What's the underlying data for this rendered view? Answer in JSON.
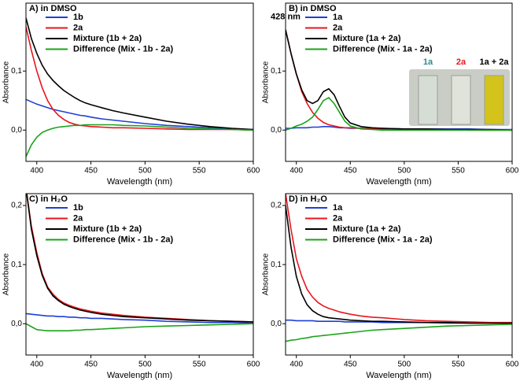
{
  "chart_data": [
    {
      "type": "line",
      "title": "A) in DMSO",
      "xlabel": "Wavelength (nm)",
      "ylabel": "Absorbance",
      "x": [
        390,
        395,
        400,
        405,
        410,
        415,
        420,
        425,
        430,
        435,
        440,
        445,
        450,
        460,
        470,
        480,
        500,
        520,
        540,
        560,
        580,
        600
      ],
      "xlim": [
        390,
        600
      ],
      "xticks": [
        400,
        450,
        500,
        550,
        600
      ],
      "ylim": [
        -0.053,
        0.215
      ],
      "yticks": [
        {
          "value": 0,
          "label": "0,0"
        },
        {
          "value": 0.1,
          "label": "0,1"
        }
      ],
      "series": [
        {
          "name": "1b",
          "color": "#1f3fd6",
          "values": [
            0.052,
            0.048,
            0.044,
            0.041,
            0.038,
            0.035,
            0.033,
            0.031,
            0.029,
            0.027,
            0.025,
            0.024,
            0.022,
            0.019,
            0.017,
            0.015,
            0.011,
            0.008,
            0.006,
            0.004,
            0.002,
            0.001
          ]
        },
        {
          "name": "2a",
          "color": "#e8161e",
          "values": [
            0.175,
            0.135,
            0.1,
            0.072,
            0.05,
            0.035,
            0.025,
            0.018,
            0.013,
            0.01,
            0.008,
            0.007,
            0.006,
            0.005,
            0.004,
            0.004,
            0.003,
            0.002,
            0.001,
            0.001,
            0.001,
            0
          ]
        },
        {
          "name": "Mixture (1b + 2a)",
          "color": "#000000",
          "values": [
            0.19,
            0.155,
            0.13,
            0.11,
            0.095,
            0.084,
            0.075,
            0.067,
            0.061,
            0.055,
            0.05,
            0.046,
            0.043,
            0.038,
            0.033,
            0.029,
            0.022,
            0.015,
            0.01,
            0.006,
            0.003,
            0.001
          ]
        },
        {
          "name": "Difference (Mix - 1b - 2a)",
          "color": "#1aa31a",
          "values": [
            -0.045,
            -0.025,
            -0.012,
            -0.004,
            0,
            0.003,
            0.005,
            0.006,
            0.007,
            0.008,
            0.008,
            0.009,
            0.009,
            0.009,
            0.009,
            0.008,
            0.007,
            0.005,
            0.003,
            0.002,
            0.001,
            0
          ]
        }
      ]
    },
    {
      "type": "line",
      "title": "B) in DMSO",
      "xlabel": "Wavelength (nm)",
      "ylabel": "Absorbance",
      "x": [
        390,
        395,
        400,
        405,
        410,
        415,
        420,
        425,
        430,
        435,
        440,
        445,
        450,
        460,
        470,
        480,
        500,
        520,
        540,
        560,
        580,
        600
      ],
      "xlim": [
        390,
        600
      ],
      "xticks": [
        400,
        450,
        500,
        550,
        600
      ],
      "ylim": [
        -0.053,
        0.215
      ],
      "yticks": [
        {
          "value": 0,
          "label": "0,0"
        },
        {
          "value": 0.1,
          "label": "0,1"
        }
      ],
      "annotation": "428 nm",
      "inset_labels": [
        "1a",
        "2a",
        "1a + 2a"
      ],
      "series": [
        {
          "name": "1a",
          "color": "#1f3fd6",
          "values": [
            0.003,
            0.003,
            0.004,
            0.004,
            0.004,
            0.005,
            0.005,
            0.006,
            0.006,
            0.005,
            0.004,
            0.004,
            0.003,
            0.003,
            0.003,
            0.003,
            0.002,
            0.002,
            0.002,
            0.002,
            0.001,
            0.001
          ]
        },
        {
          "name": "2a",
          "color": "#e8161e",
          "values": [
            0.17,
            0.13,
            0.095,
            0.065,
            0.045,
            0.03,
            0.02,
            0.013,
            0.009,
            0.007,
            0.005,
            0.004,
            0.004,
            0.003,
            0.002,
            0.002,
            0.001,
            0.001,
            0.001,
            0,
            0,
            0
          ]
        },
        {
          "name": "Mixture (1a + 2a)",
          "color": "#000000",
          "values": [
            0.17,
            0.13,
            0.095,
            0.068,
            0.05,
            0.045,
            0.05,
            0.065,
            0.07,
            0.06,
            0.04,
            0.022,
            0.012,
            0.006,
            0.004,
            0.003,
            0.002,
            0.002,
            0.001,
            0.001,
            0.001,
            0
          ]
        },
        {
          "name": "Difference (Mix - 1a - 2a)",
          "color": "#1aa31a",
          "values": [
            0,
            0.003,
            0.007,
            0.01,
            0.015,
            0.022,
            0.035,
            0.05,
            0.055,
            0.045,
            0.03,
            0.015,
            0.007,
            0.002,
            0.001,
            0,
            0,
            0,
            0,
            0,
            0,
            0
          ]
        }
      ]
    },
    {
      "type": "line",
      "title": "C) in H₂O",
      "xlabel": "Wavelength (nm)",
      "ylabel": "Absorbance",
      "x": [
        390,
        395,
        400,
        405,
        410,
        415,
        420,
        425,
        430,
        435,
        440,
        445,
        450,
        460,
        470,
        480,
        500,
        520,
        540,
        560,
        580,
        600
      ],
      "xlim": [
        390,
        600
      ],
      "xticks": [
        400,
        450,
        500,
        550,
        600
      ],
      "ylim": [
        -0.053,
        0.22
      ],
      "yticks": [
        {
          "value": 0,
          "label": "0,0"
        },
        {
          "value": 0.1,
          "label": "0,1"
        },
        {
          "value": 0.2,
          "label": "0,2"
        }
      ],
      "series": [
        {
          "name": "1b",
          "color": "#1f3fd6",
          "values": [
            0.017,
            0.016,
            0.015,
            0.014,
            0.013,
            0.013,
            0.012,
            0.012,
            0.011,
            0.011,
            0.01,
            0.01,
            0.009,
            0.009,
            0.008,
            0.007,
            0.006,
            0.004,
            0.003,
            0.002,
            0.002,
            0.001
          ]
        },
        {
          "name": "2a",
          "color": "#e8161e",
          "values": [
            0.23,
            0.165,
            0.12,
            0.085,
            0.062,
            0.05,
            0.041,
            0.035,
            0.031,
            0.028,
            0.025,
            0.023,
            0.021,
            0.018,
            0.016,
            0.014,
            0.011,
            0.009,
            0.007,
            0.005,
            0.004,
            0.003
          ]
        },
        {
          "name": "Mixture (1b + 2a)",
          "color": "#000000",
          "values": [
            0.23,
            0.16,
            0.115,
            0.082,
            0.06,
            0.047,
            0.039,
            0.033,
            0.029,
            0.026,
            0.023,
            0.021,
            0.019,
            0.016,
            0.014,
            0.012,
            0.01,
            0.008,
            0.006,
            0.005,
            0.004,
            0.003
          ]
        },
        {
          "name": "Difference (Mix - 1b - 2a)",
          "color": "#1aa31a",
          "values": [
            0,
            -0.005,
            -0.01,
            -0.011,
            -0.012,
            -0.012,
            -0.012,
            -0.012,
            -0.012,
            -0.011,
            -0.011,
            -0.01,
            -0.01,
            -0.009,
            -0.008,
            -0.007,
            -0.005,
            -0.004,
            -0.003,
            -0.002,
            -0.001,
            0
          ]
        }
      ]
    },
    {
      "type": "line",
      "title": "D) in H₂O",
      "xlabel": "Wavelength (nm)",
      "ylabel": "Absorbance",
      "x": [
        390,
        395,
        400,
        405,
        410,
        415,
        420,
        425,
        430,
        435,
        440,
        445,
        450,
        460,
        470,
        480,
        500,
        520,
        540,
        560,
        580,
        600
      ],
      "xlim": [
        390,
        600
      ],
      "xticks": [
        400,
        450,
        500,
        550,
        600
      ],
      "ylim": [
        -0.053,
        0.22
      ],
      "yticks": [
        {
          "value": 0,
          "label": "0,0"
        },
        {
          "value": 0.1,
          "label": "0,1"
        },
        {
          "value": 0.2,
          "label": "0,2"
        }
      ],
      "series": [
        {
          "name": "1a",
          "color": "#1f3fd6",
          "values": [
            0.006,
            0.006,
            0.005,
            0.005,
            0.005,
            0.005,
            0.004,
            0.004,
            0.004,
            0.004,
            0.004,
            0.003,
            0.003,
            0.003,
            0.003,
            0.002,
            0.002,
            0.002,
            0.001,
            0.001,
            0.001,
            0.001
          ]
        },
        {
          "name": "2a",
          "color": "#e8161e",
          "values": [
            0.22,
            0.16,
            0.11,
            0.08,
            0.058,
            0.045,
            0.036,
            0.03,
            0.026,
            0.023,
            0.02,
            0.018,
            0.016,
            0.013,
            0.011,
            0.01,
            0.007,
            0.005,
            0.004,
            0.003,
            0.002,
            0.002
          ]
        },
        {
          "name": "Mixture (1a + 2a)",
          "color": "#000000",
          "values": [
            0.2,
            0.13,
            0.08,
            0.05,
            0.032,
            0.022,
            0.016,
            0.012,
            0.01,
            0.009,
            0.008,
            0.007,
            0.006,
            0.005,
            0.004,
            0.004,
            0.003,
            0.002,
            0.002,
            0.001,
            0.001,
            0.001
          ]
        },
        {
          "name": "Difference (Mix - 1a - 2a)",
          "color": "#1aa31a",
          "values": [
            -0.03,
            -0.028,
            -0.027,
            -0.025,
            -0.024,
            -0.022,
            -0.021,
            -0.02,
            -0.019,
            -0.018,
            -0.017,
            -0.016,
            -0.015,
            -0.013,
            -0.011,
            -0.01,
            -0.008,
            -0.006,
            -0.004,
            -0.003,
            -0.002,
            -0.001
          ]
        }
      ]
    }
  ]
}
